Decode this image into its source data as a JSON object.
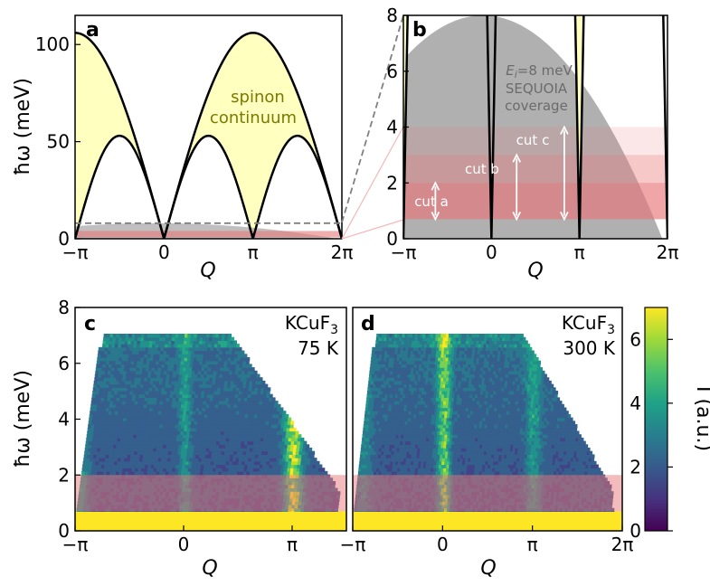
{
  "chart_data": [
    {
      "type": "area",
      "panel_letter": "a",
      "title": "",
      "xlabel": "Q",
      "ylabel": "ħω (meV)",
      "xlim": [
        -3.1416,
        6.2832
      ],
      "ylim": [
        0,
        115
      ],
      "xtick_labels": [
        "−π",
        "0",
        "π",
        "2π"
      ],
      "xtick_values": [
        -3.1416,
        0,
        3.1416,
        6.2832
      ],
      "ytick_labels": [
        "0",
        "50",
        "100"
      ],
      "ytick_values": [
        0,
        50,
        100
      ],
      "upper_boundary_max": 106,
      "lower_boundary_max": 53,
      "region_label_line1": "spinon",
      "region_label_line2": "continuum",
      "coverage_cutoff": 8,
      "colors": {
        "continuum": "#ffffc0",
        "coverage": "#a9a9a9",
        "cut": "#e8787a"
      }
    },
    {
      "type": "area",
      "panel_letter": "b",
      "xlabel": "Q",
      "ylabel": "",
      "xlim": [
        -3.1416,
        6.2832
      ],
      "ylim": [
        0,
        8
      ],
      "xtick_labels": [
        "−π",
        "0",
        "π",
        "2π"
      ],
      "ytick_labels": [
        "0",
        "2",
        "4",
        "6",
        "8"
      ],
      "ytick_values": [
        0,
        2,
        4,
        6,
        8
      ],
      "coverage_peak": 8,
      "coverage_label_line1": "E",
      "coverage_label_sub": "i",
      "coverage_label_eq": "=8 meV",
      "coverage_label_line2": "SEQUOIA",
      "coverage_label_line3": "coverage",
      "cuts": [
        {
          "name": "cut a",
          "emin": 0.7,
          "emax": 2
        },
        {
          "name": "cut b",
          "emin": 0.7,
          "emax": 3
        },
        {
          "name": "cut c",
          "emin": 0.7,
          "emax": 4
        }
      ]
    },
    {
      "type": "heatmap",
      "panel_letter": "c",
      "xlabel": "Q",
      "ylabel": "ħω (meV)",
      "xlim": [
        -3.1416,
        4.7124
      ],
      "ylim": [
        0,
        8
      ],
      "xtick_labels": [
        "−π",
        "0",
        "π"
      ],
      "ytick_labels": [
        "0",
        "2",
        "4",
        "6",
        "8"
      ],
      "material_prefix": "KCuF",
      "material_sub": "3",
      "temperature": "75 K",
      "highlight_band": [
        0.7,
        2
      ]
    },
    {
      "type": "heatmap",
      "panel_letter": "d",
      "xlabel": "Q",
      "xlim": [
        -3.1416,
        6.2832
      ],
      "ylim": [
        0,
        8
      ],
      "xtick_labels": [
        "−π",
        "0",
        "π",
        "2π"
      ],
      "material_prefix": "KCuF",
      "material_sub": "3",
      "temperature": "300 K",
      "highlight_band": [
        0.7,
        2
      ]
    },
    {
      "type": "colorbar",
      "label": "I (a.u.)",
      "range": [
        0,
        7
      ],
      "tick_labels": [
        "0",
        "2",
        "4",
        "6"
      ],
      "tick_values": [
        0,
        2,
        4,
        6
      ]
    }
  ]
}
